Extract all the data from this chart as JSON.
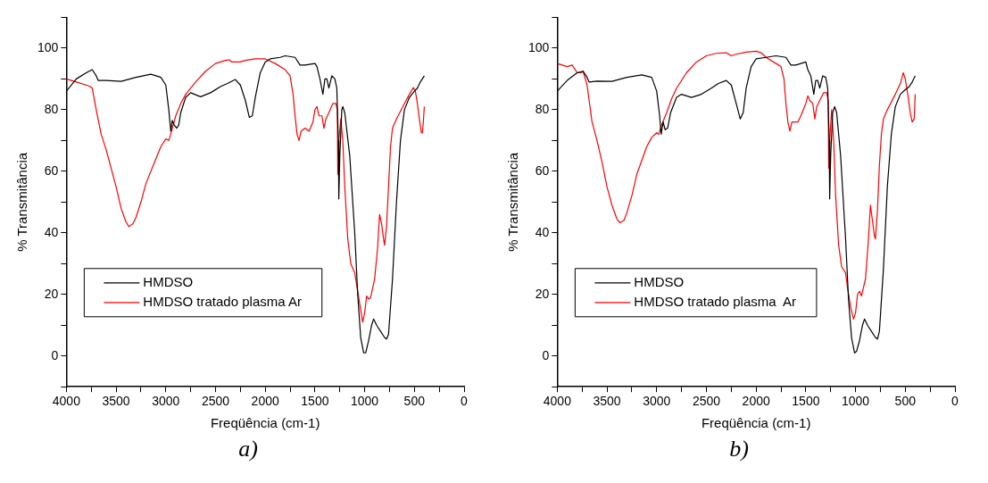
{
  "chart_data": [
    {
      "type": "line",
      "annotations": [
        "a)"
      ],
      "xlabel": "Freqüência (cm-1)",
      "ylabel": "% Transmitância",
      "xlim": [
        4000,
        0
      ],
      "ylim": [
        -10,
        110
      ],
      "xticks": [
        4000,
        {
          "value": 3750,
          "label": null
        },
        3500,
        {
          "value": 3250,
          "label": null
        },
        3000,
        {
          "value": 2750,
          "label": null
        },
        2500,
        {
          "value": 2250,
          "label": null
        },
        2000,
        {
          "value": 1750,
          "label": null
        },
        1500,
        {
          "value": 1250,
          "label": null
        },
        1000,
        {
          "value": 750,
          "label": null
        },
        500,
        {
          "value": 250,
          "label": null
        },
        0
      ],
      "yticks": [
        {
          "value": -10,
          "label": null
        },
        0,
        {
          "value": 10,
          "label": null
        },
        20,
        {
          "value": 30,
          "label": null
        },
        40,
        {
          "value": 50,
          "label": null
        },
        60,
        {
          "value": 70,
          "label": null
        },
        80,
        {
          "value": 90,
          "label": null
        },
        100,
        {
          "value": 110,
          "label": null
        }
      ],
      "grid": false,
      "legend": "bottom left",
      "marker": "none",
      "line_style": "solid",
      "series": [
        {
          "name": "HMDSO",
          "color": "#000000",
          "x": [
            4000,
            3900,
            3800,
            3740,
            3700,
            3680,
            3600,
            3450,
            3300,
            3150,
            3050,
            3000,
            2970,
            2950,
            2935,
            2915,
            2890,
            2870,
            2850,
            2800,
            2750,
            2650,
            2550,
            2450,
            2380,
            2300,
            2250,
            2200,
            2160,
            2130,
            2100,
            2050,
            2000,
            1950,
            1850,
            1800,
            1700,
            1650,
            1600,
            1500,
            1480,
            1450,
            1420,
            1400,
            1380,
            1360,
            1330,
            1300,
            1280,
            1265,
            1260,
            1250,
            1230,
            1220,
            1200,
            1150,
            1100,
            1070,
            1040,
            1010,
            990,
            960,
            930,
            910,
            880,
            840,
            800,
            780,
            760,
            720,
            680,
            640,
            600,
            550,
            500,
            470,
            440,
            400
          ],
          "values": [
            86,
            90,
            92,
            93,
            91,
            89.5,
            89.5,
            89.2,
            90.5,
            91.5,
            90.5,
            88,
            80,
            73,
            76.5,
            75,
            74,
            75,
            79,
            84,
            85.5,
            84.2,
            85.5,
            87.5,
            88.5,
            89.8,
            88,
            83,
            77.5,
            78,
            84,
            92,
            95.5,
            96.5,
            97,
            97.5,
            97,
            94.5,
            94.5,
            95,
            94,
            90,
            85,
            90,
            90,
            87,
            91,
            90,
            87,
            70,
            51,
            65,
            80,
            81,
            79,
            65,
            40,
            20,
            6,
            1,
            1,
            5,
            10,
            12,
            10,
            8,
            6,
            5.5,
            7,
            25,
            50,
            70,
            80,
            84,
            86,
            87,
            89,
            91
          ]
        },
        {
          "name": "HMDSO tratado plasma Ar",
          "color": "#ff0000",
          "x": [
            4000,
            3900,
            3800,
            3760,
            3740,
            3700,
            3650,
            3600,
            3550,
            3500,
            3450,
            3400,
            3370,
            3330,
            3300,
            3250,
            3200,
            3100,
            3050,
            3000,
            2970,
            2950,
            2900,
            2850,
            2800,
            2700,
            2600,
            2500,
            2400,
            2360,
            2340,
            2250,
            2200,
            2100,
            2000,
            1900,
            1800,
            1750,
            1720,
            1700,
            1680,
            1660,
            1640,
            1600,
            1560,
            1520,
            1500,
            1480,
            1460,
            1430,
            1410,
            1390,
            1360,
            1320,
            1290,
            1275,
            1270,
            1260,
            1240,
            1220,
            1200,
            1170,
            1140,
            1100,
            1080,
            1050,
            1020,
            1000,
            980,
            960,
            940,
            900,
            870,
            850,
            830,
            810,
            800,
            780,
            760,
            740,
            720,
            680,
            600,
            550,
            510,
            490,
            470,
            450,
            430,
            420,
            410,
            400
          ],
          "values": [
            90,
            89,
            88,
            87.5,
            87,
            80,
            72,
            67,
            61,
            55,
            48,
            43.5,
            42,
            43,
            45,
            50,
            56,
            64,
            68,
            70.5,
            70,
            72,
            78,
            82,
            85,
            89,
            92.5,
            95,
            96,
            96.2,
            95.5,
            95.5,
            96,
            96.5,
            96.5,
            95,
            93,
            91,
            85,
            78,
            72,
            70,
            73,
            74,
            73,
            76,
            80,
            81,
            78,
            78,
            74,
            77,
            79,
            82,
            82,
            80,
            59,
            70,
            77,
            70,
            55,
            38,
            30,
            27,
            23,
            17,
            11,
            14,
            19.5,
            18.5,
            19,
            25,
            35,
            46,
            43,
            38,
            36,
            42,
            55,
            68,
            74,
            77,
            82,
            85,
            87.2,
            86,
            82,
            77,
            72.5,
            72.5,
            76,
            81
          ]
        }
      ]
    },
    {
      "type": "line",
      "annotations": [
        "b)"
      ],
      "xlabel": "Freqüência (cm-1)",
      "ylabel": "% Transmitância",
      "xlim": [
        4000,
        0
      ],
      "ylim": [
        -10,
        110
      ],
      "xticks": [
        4000,
        {
          "value": 3750,
          "label": null
        },
        3500,
        {
          "value": 3250,
          "label": null
        },
        3000,
        {
          "value": 2750,
          "label": null
        },
        2500,
        {
          "value": 2250,
          "label": null
        },
        2000,
        {
          "value": 1750,
          "label": null
        },
        1500,
        {
          "value": 1250,
          "label": null
        },
        1000,
        {
          "value": 750,
          "label": null
        },
        500,
        {
          "value": 250,
          "label": null
        },
        0
      ],
      "yticks": [
        {
          "value": -10,
          "label": null
        },
        0,
        {
          "value": 10,
          "label": null
        },
        20,
        {
          "value": 30,
          "label": null
        },
        40,
        {
          "value": 50,
          "label": null
        },
        60,
        {
          "value": 70,
          "label": null
        },
        80,
        {
          "value": 90,
          "label": null
        },
        100,
        {
          "value": 110,
          "label": null
        }
      ],
      "grid": false,
      "legend": "bottom left",
      "marker": "none",
      "line_style": "solid",
      "series": [
        {
          "name": "HMDSO",
          "color": "#000000",
          "x": [
            4000,
            3900,
            3800,
            3740,
            3700,
            3680,
            3600,
            3450,
            3300,
            3150,
            3050,
            3000,
            2970,
            2955,
            2935,
            2915,
            2890,
            2860,
            2800,
            2750,
            2650,
            2550,
            2450,
            2380,
            2300,
            2250,
            2200,
            2160,
            2130,
            2100,
            2050,
            2000,
            1900,
            1800,
            1700,
            1650,
            1600,
            1500,
            1480,
            1450,
            1420,
            1400,
            1380,
            1360,
            1330,
            1300,
            1280,
            1265,
            1260,
            1250,
            1230,
            1210,
            1190,
            1150,
            1100,
            1070,
            1040,
            1010,
            990,
            960,
            930,
            910,
            880,
            840,
            800,
            780,
            760,
            720,
            680,
            640,
            600,
            550,
            500,
            460,
            430,
            400
          ],
          "values": [
            86,
            89.5,
            92,
            92.5,
            90.5,
            89,
            89.3,
            89.2,
            90.5,
            91.3,
            90.5,
            86,
            78,
            72,
            76,
            73.5,
            74,
            79,
            84,
            85,
            84,
            85,
            87,
            88.5,
            89.5,
            88,
            82,
            77,
            79,
            87,
            94,
            96.5,
            97,
            97.5,
            97,
            94.5,
            94.5,
            95.5,
            93,
            91,
            85,
            89.5,
            89.5,
            87,
            91,
            90.5,
            87,
            70,
            51,
            65,
            79,
            81,
            79,
            65,
            38,
            18,
            6,
            1,
            1.5,
            5,
            10,
            12,
            10,
            8,
            6,
            5.5,
            8,
            28,
            55,
            72,
            81,
            85,
            86.5,
            87.5,
            89,
            91
          ]
        },
        {
          "name": "HMDSO tratado plasma  Ar",
          "color": "#ff0000",
          "x": [
            4000,
            3900,
            3850,
            3800,
            3760,
            3740,
            3700,
            3650,
            3600,
            3550,
            3500,
            3450,
            3400,
            3370,
            3330,
            3300,
            3250,
            3200,
            3100,
            3050,
            3000,
            2980,
            2950,
            2900,
            2850,
            2800,
            2700,
            2600,
            2500,
            2400,
            2300,
            2250,
            2200,
            2100,
            2000,
            1950,
            1900,
            1800,
            1750,
            1720,
            1700,
            1680,
            1660,
            1640,
            1620,
            1580,
            1550,
            1500,
            1480,
            1460,
            1430,
            1410,
            1390,
            1360,
            1320,
            1290,
            1275,
            1270,
            1260,
            1240,
            1220,
            1200,
            1170,
            1140,
            1100,
            1080,
            1050,
            1020,
            1000,
            980,
            960,
            940,
            900,
            870,
            850,
            830,
            810,
            800,
            780,
            760,
            740,
            720,
            680,
            600,
            550,
            520,
            500,
            470,
            450,
            430,
            410,
            400
          ],
          "values": [
            95,
            94,
            94.5,
            92,
            92,
            92.5,
            88,
            76,
            70,
            63,
            55,
            49,
            44.5,
            43.3,
            44,
            46.5,
            52,
            59,
            68,
            71,
            72.5,
            72,
            75,
            79,
            83.5,
            87,
            92,
            95.5,
            97.5,
            98.3,
            98.5,
            97.5,
            98,
            98.7,
            99,
            98.5,
            97,
            95,
            94,
            90,
            82,
            76,
            73,
            76,
            76,
            76,
            78,
            82,
            84.5,
            83,
            82,
            77,
            81,
            83,
            85.5,
            85.5,
            83,
            61,
            70,
            80,
            70,
            52,
            36,
            29,
            27,
            22,
            16,
            12,
            14,
            20,
            21,
            19.5,
            25,
            38,
            49,
            44,
            39,
            38,
            47,
            62,
            72,
            77,
            80,
            85,
            88.5,
            92,
            90,
            84,
            79,
            76,
            77,
            85
          ]
        }
      ]
    }
  ]
}
